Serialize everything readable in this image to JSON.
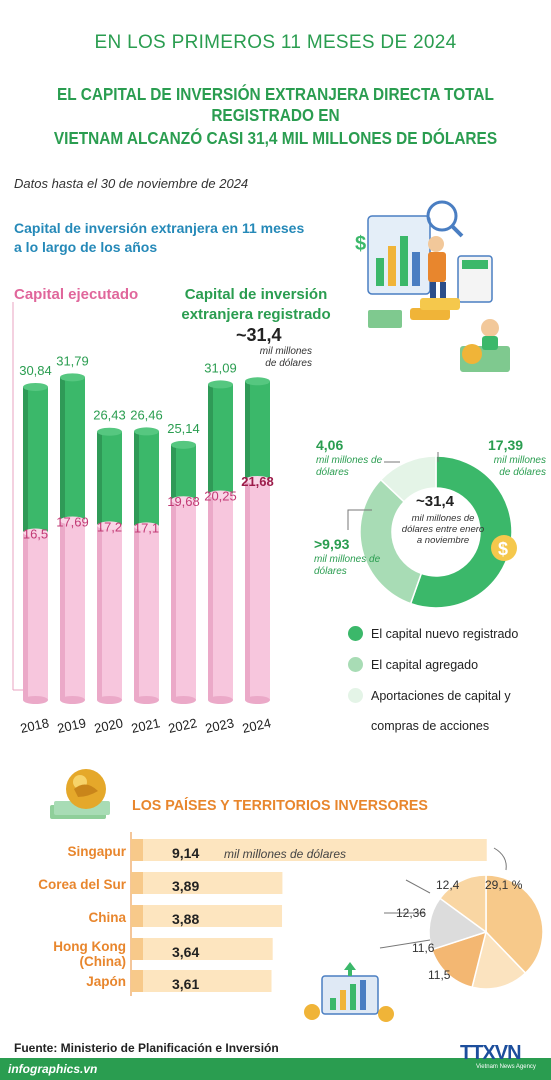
{
  "header": {
    "line1": "EN LOS PRIMEROS 11 MESES DE 2024",
    "line2": "EL CAPITAL DE INVERSIÓN EXTRANJERA DIRECTA TOTAL REGISTRADO EN",
    "line3": "VIETNAM ALCANZÓ CASI 31,4 MIL MILLONES DE DÓLARES"
  },
  "data_note": "Datos hasta el 30 de noviembre de 2024",
  "chart_data": [
    {
      "type": "bar",
      "title": "Capital de inversión extranjera en 11 meses a lo largo de los años",
      "categories": [
        "2018",
        "2019",
        "2020",
        "2021",
        "2022",
        "2023",
        "2024"
      ],
      "series": [
        {
          "name": "Capital de inversión extranjera registrado",
          "values": [
            30.84,
            31.79,
            26.43,
            26.46,
            25.14,
            31.09,
            31.4
          ],
          "labels": [
            "30,84",
            "31,79",
            "26,43",
            "26,46",
            "25,14",
            "31,09",
            ""
          ]
        },
        {
          "name": "Capital ejecutado",
          "values": [
            16.5,
            17.69,
            17.2,
            17.1,
            19.68,
            20.25,
            21.68
          ],
          "labels": [
            "16,5",
            "17,69",
            "17,2",
            "17,1",
            "19,68",
            "20,25",
            "21,68"
          ]
        }
      ],
      "legend": {
        "executed": "Capital ejecutado",
        "registered": "Capital de inversión extranjera registrado"
      },
      "highlight": {
        "value": "~31,4",
        "unit": "mil millones de dólares"
      },
      "colors": {
        "registered": "#3bb86a",
        "executed": "#f7c6dd",
        "executed_highlight": "#9c1c4a"
      }
    },
    {
      "type": "pie",
      "variant": "donut",
      "center": {
        "value": "~31,4",
        "unit": "mil millones de dólares entre enero a noviembre"
      },
      "slices": [
        {
          "name": "El capital nuevo registrado",
          "value": 17.39,
          "label": "17,39",
          "unit": "mil millones de dólares",
          "color": "#3bb86a"
        },
        {
          "name": "El capital agregado",
          "value": 9.93,
          "label": ">9,93",
          "unit": "mil millones de dólares",
          "color": "#a8dcb5"
        },
        {
          "name": "Aportaciones de capital y compras de acciones",
          "value": 4.06,
          "label": "4,06",
          "unit": "mil millones de dólares",
          "color": "#e4f4e7"
        }
      ]
    },
    {
      "type": "bar",
      "orientation": "horizontal",
      "title": "LOS PAÍSES Y TERRITORIOS INVERSORES",
      "categories": [
        "Singapur",
        "Corea del Sur",
        "China",
        "Hong Kong (China)",
        "Japón"
      ],
      "values": [
        9.14,
        3.89,
        3.88,
        3.64,
        3.61
      ],
      "labels": [
        "9,14",
        "3,89",
        "3,88",
        "3,64",
        "3,61"
      ],
      "unit": "mil millones de dólares",
      "xlim": [
        0,
        9.3
      ]
    },
    {
      "type": "pie",
      "slices": [
        {
          "value": 29.1,
          "label": "29,1 %"
        },
        {
          "value": 12.4,
          "label": "12,4"
        },
        {
          "value": 12.36,
          "label": "12,36"
        },
        {
          "value": 11.6,
          "label": "11,6"
        },
        {
          "value": 11.5,
          "label": "11,5"
        }
      ],
      "colors": [
        "#f7c98a",
        "#fbe3bf",
        "#f3b772",
        "#dcdcdc",
        "#f9d6a3"
      ]
    }
  ],
  "donut_legend": [
    {
      "label": "El capital nuevo registrado",
      "color": "#3bb86a"
    },
    {
      "label": "El capital agregado",
      "color": "#a8dcb5"
    },
    {
      "label": "Aportaciones de capital y",
      "color": "#e4f4e7"
    },
    {
      "label": "compras de acciones"
    }
  ],
  "countries_section": {
    "title": "LOS PAÍSES Y TERRITORIOS INVERSORES"
  },
  "countries_names": [
    "Singapur",
    "Corea del Sur",
    "China",
    "Hong Kong",
    "(China)",
    "Japón"
  ],
  "source": "Fuente: Ministerio de Planificación e Inversión",
  "footer": {
    "site": "infographics.vn",
    "agency": "TTXVN",
    "agency_sub": "Vietnam News Agency"
  }
}
